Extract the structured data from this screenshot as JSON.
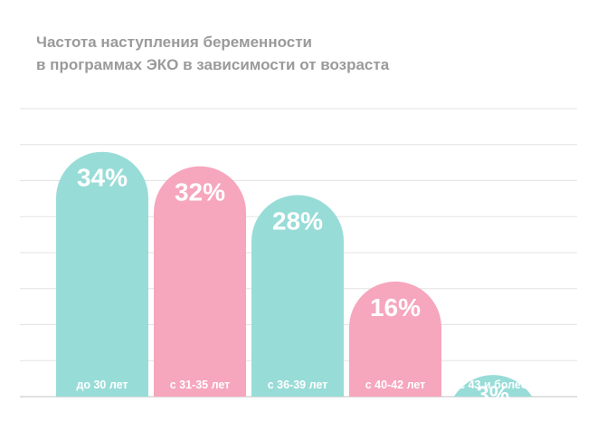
{
  "chart_data": {
    "type": "bar",
    "title_lines": [
      "Частота наступления беременности",
      "в программах ЭКО в зависимости от возраста"
    ],
    "categories": [
      "до 30 лет",
      "с 31-35 лет",
      "с 36-39 лет",
      "с 40-42 лет",
      "с 43 и более"
    ],
    "values": [
      34,
      32,
      28,
      16,
      3
    ],
    "value_labels": [
      "34%",
      "32%",
      "28%",
      "16%",
      "3%"
    ],
    "ylim": [
      0,
      40
    ],
    "grid": true,
    "xlabel": "",
    "ylabel": "",
    "colors": [
      "#98dcd8",
      "#f6a6bd",
      "#98dcd8",
      "#f6a6bd",
      "#98dcd8"
    ],
    "gridline_color": "#e3e3e3"
  }
}
